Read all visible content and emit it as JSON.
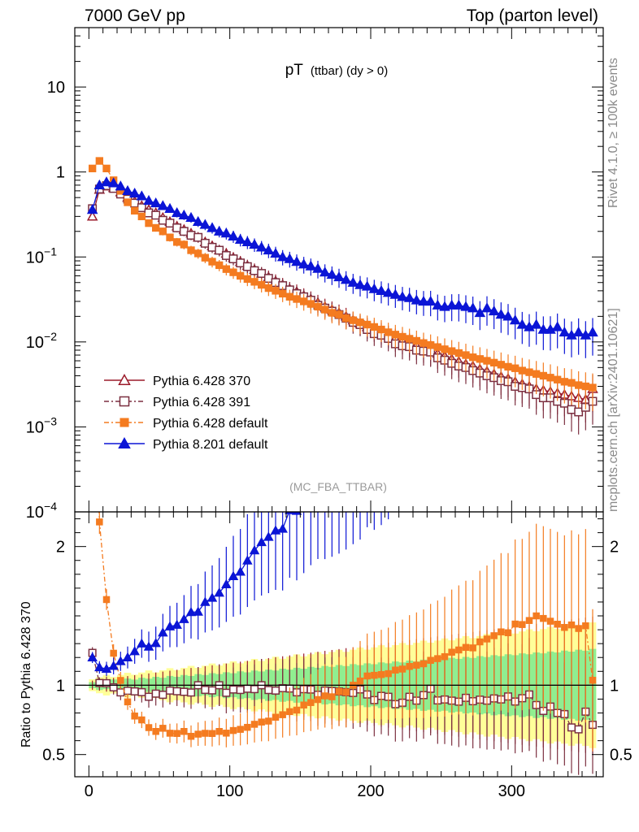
{
  "header": {
    "left": "7000 GeV pp",
    "right": "Top (parton level)"
  },
  "sidebar": {
    "rivet": "Rivet 4.1.0, ≥ 100k events",
    "mcplots": "mcplots.cern.ch [arXiv:2401.10621]"
  },
  "chart_data": {
    "type": "scatter",
    "title_main": "pT",
    "title_sub": "(ttbar) (dy > 0)",
    "watermark": "(MC_FBA_TTBAR)",
    "xlabel": "",
    "ylabel_main": "",
    "ylabel_ratio": "Ratio to Pythia 6.428 370",
    "xlim": [
      -10,
      365
    ],
    "ylim_main": [
      0.0001,
      50
    ],
    "ylim_ratio": [
      0.34,
      2.25
    ],
    "x_ticks": [
      0,
      100,
      200,
      300
    ],
    "y_ticks_main": [
      {
        "v": 10,
        "base": "10",
        "exp": ""
      },
      {
        "v": 1,
        "base": "1",
        "exp": ""
      },
      {
        "v": 0.1,
        "base": "10",
        "exp": "−1"
      },
      {
        "v": 0.01,
        "base": "10",
        "exp": "−2"
      },
      {
        "v": 0.001,
        "base": "10",
        "exp": "−3"
      },
      {
        "v": 0.0001,
        "base": "10",
        "exp": "−4"
      }
    ],
    "y_ticks_ratio": [
      0.5,
      1,
      2
    ],
    "legend": [
      {
        "name": "Pythia 6.428 370",
        "color": "#9b1b2b",
        "marker": "triangle-open",
        "dash": "solid"
      },
      {
        "name": "Pythia 6.428 391",
        "color": "#7b2f40",
        "marker": "square-open",
        "dash": "dashdot"
      },
      {
        "name": "Pythia 6.428 default",
        "color": "#f47b20",
        "marker": "square-filled",
        "dash": "dashdot"
      },
      {
        "name": "Pythia 8.201 default",
        "color": "#0b15d6",
        "marker": "triangle-filled",
        "dash": "solid"
      }
    ],
    "band_colors": {
      "yellow": "#ffff99",
      "green": "#90ee90"
    },
    "x": [
      2.5,
      7.5,
      12.5,
      17.5,
      22.5,
      27.5,
      32.5,
      37.5,
      42.5,
      47.5,
      52.5,
      57.5,
      62.5,
      67.5,
      72.5,
      77.5,
      82.5,
      87.5,
      92.5,
      97.5,
      102.5,
      107.5,
      112.5,
      117.5,
      122.5,
      127.5,
      132.5,
      137.5,
      142.5,
      147.5,
      152.5,
      157.5,
      162.5,
      167.5,
      172.5,
      177.5,
      182.5,
      187.5,
      192.5,
      197.5,
      202.5,
      207.5,
      212.5,
      217.5,
      222.5,
      227.5,
      232.5,
      237.5,
      242.5,
      247.5,
      252.5,
      257.5,
      262.5,
      267.5,
      272.5,
      277.5,
      282.5,
      287.5,
      292.5,
      297.5,
      302.5,
      307.5,
      312.5,
      317.5,
      322.5,
      327.5,
      332.5,
      337.5,
      342.5,
      347.5,
      352.5,
      357.5
    ],
    "series": [
      {
        "name": "Pythia 6.428 370",
        "values": [
          0.3,
          0.62,
          0.68,
          0.65,
          0.58,
          0.5,
          0.45,
          0.4,
          0.36,
          0.33,
          0.29,
          0.26,
          0.23,
          0.21,
          0.19,
          0.17,
          0.15,
          0.135,
          0.12,
          0.11,
          0.098,
          0.088,
          0.079,
          0.071,
          0.064,
          0.058,
          0.052,
          0.047,
          0.042,
          0.039,
          0.035,
          0.032,
          0.029,
          0.026,
          0.024,
          0.022,
          0.02,
          0.018,
          0.0165,
          0.015,
          0.014,
          0.013,
          0.012,
          0.011,
          0.0103,
          0.0096,
          0.009,
          0.0084,
          0.0078,
          0.0073,
          0.0068,
          0.0063,
          0.0059,
          0.0055,
          0.0052,
          0.0048,
          0.0045,
          0.0042,
          0.0039,
          0.0037,
          0.0034,
          0.0032,
          0.003,
          0.0028,
          0.0027,
          0.0026,
          0.0025,
          0.0024,
          0.0023,
          0.0022,
          0.0021,
          0.0028
        ]
      },
      {
        "name": "Pythia 6.428 391",
        "values": [
          0.37,
          0.63,
          0.69,
          0.64,
          0.55,
          0.48,
          0.43,
          0.38,
          0.33,
          0.31,
          0.27,
          0.25,
          0.22,
          0.2,
          0.18,
          0.17,
          0.145,
          0.13,
          0.12,
          0.104,
          0.095,
          0.085,
          0.077,
          0.069,
          0.064,
          0.056,
          0.05,
          0.046,
          0.041,
          0.037,
          0.034,
          0.031,
          0.027,
          0.025,
          0.023,
          0.021,
          0.019,
          0.017,
          0.016,
          0.014,
          0.0125,
          0.012,
          0.011,
          0.0095,
          0.009,
          0.0088,
          0.008,
          0.0078,
          0.0076,
          0.0065,
          0.0061,
          0.0056,
          0.0052,
          0.005,
          0.0046,
          0.0043,
          0.004,
          0.0038,
          0.0035,
          0.0034,
          0.003,
          0.0029,
          0.0028,
          0.0024,
          0.0022,
          0.0022,
          0.002,
          0.0019,
          0.0016,
          0.0015,
          0.0017,
          0.002
        ]
      },
      {
        "name": "Pythia 6.428 default",
        "values": [
          1.1,
          1.35,
          1.1,
          0.8,
          0.6,
          0.44,
          0.35,
          0.3,
          0.25,
          0.22,
          0.2,
          0.17,
          0.15,
          0.14,
          0.12,
          0.11,
          0.098,
          0.088,
          0.08,
          0.072,
          0.066,
          0.06,
          0.055,
          0.051,
          0.047,
          0.043,
          0.04,
          0.037,
          0.034,
          0.032,
          0.03,
          0.028,
          0.026,
          0.024,
          0.022,
          0.021,
          0.019,
          0.018,
          0.017,
          0.016,
          0.015,
          0.014,
          0.013,
          0.0122,
          0.0115,
          0.0109,
          0.0103,
          0.0097,
          0.0092,
          0.0087,
          0.0082,
          0.0078,
          0.0074,
          0.007,
          0.0066,
          0.0063,
          0.006,
          0.0057,
          0.0054,
          0.0051,
          0.0049,
          0.0046,
          0.0044,
          0.0042,
          0.004,
          0.0038,
          0.0036,
          0.0034,
          0.0033,
          0.0031,
          0.003,
          0.0029
        ]
      },
      {
        "name": "Pythia 8.201 default",
        "values": [
          0.36,
          0.7,
          0.76,
          0.74,
          0.68,
          0.6,
          0.56,
          0.52,
          0.46,
          0.43,
          0.4,
          0.37,
          0.33,
          0.31,
          0.29,
          0.26,
          0.24,
          0.22,
          0.2,
          0.19,
          0.175,
          0.16,
          0.15,
          0.14,
          0.13,
          0.12,
          0.11,
          0.1,
          0.095,
          0.088,
          0.082,
          0.078,
          0.073,
          0.066,
          0.062,
          0.058,
          0.054,
          0.05,
          0.047,
          0.045,
          0.042,
          0.04,
          0.038,
          0.036,
          0.034,
          0.033,
          0.031,
          0.03,
          0.03,
          0.027,
          0.026,
          0.027,
          0.027,
          0.026,
          0.025,
          0.022,
          0.025,
          0.023,
          0.021,
          0.02,
          0.018,
          0.016,
          0.015,
          0.016,
          0.014,
          0.014,
          0.015,
          0.013,
          0.012,
          0.013,
          0.012,
          0.013
        ]
      }
    ]
  }
}
